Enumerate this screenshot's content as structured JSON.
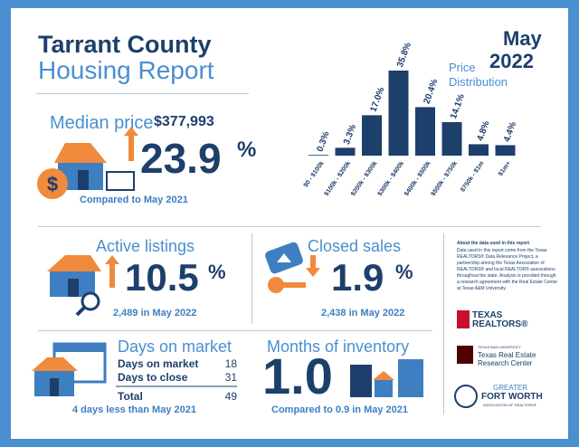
{
  "header": {
    "title": "Tarrant County",
    "subtitle": "Housing Report",
    "month": "May",
    "year": "2022"
  },
  "median": {
    "label": "Median price",
    "price": "$377,993",
    "change": "23.9",
    "unit": "%",
    "note": "Compared to May 2021"
  },
  "chart_data": {
    "type": "bar",
    "title": "Price Distribution",
    "categories": [
      "$0 - $100k",
      "$100k - $200k",
      "$200k - $300k",
      "$300k - $400k",
      "$400k - $500k",
      "$500k - $750k",
      "$750k - $1m",
      "$1m+"
    ],
    "values": [
      0.3,
      3.3,
      17.0,
      35.8,
      20.4,
      14.1,
      4.8,
      4.4
    ],
    "value_labels": [
      "0.3%",
      "3.3%",
      "17.0%",
      "35.8%",
      "20.4%",
      "14.1%",
      "4.8%",
      "4.4%"
    ],
    "color": "#1d3f6b"
  },
  "active": {
    "title": "Active listings",
    "change": "10.5",
    "unit": "%",
    "note": "2,489 in May 2022"
  },
  "closed": {
    "title": "Closed sales",
    "change": "1.9",
    "unit": "%",
    "note": "2,438 in May 2022"
  },
  "days": {
    "title": "Days on market",
    "rows": [
      [
        "Days on market",
        "18"
      ],
      [
        "Days to close",
        "31"
      ]
    ],
    "total": [
      "Total",
      "49"
    ],
    "note": "4 days less than May 2021"
  },
  "months": {
    "title": "Months of inventory",
    "value": "1.0",
    "note": "Compared to 0.9 in May 2021"
  },
  "about": {
    "title": "About the data used in this report",
    "body": "Data used in this report come from the Texas REALTORS® Data Relevance Project, a partnership among the Texas Association of REALTORS® and local REALTOR® associations throughout the state. Analysis is provided through a research agreement with the Real Estate Center at Texas A&M University."
  },
  "logos": {
    "texas_realtors": [
      "TEXAS",
      "REALTORS®"
    ],
    "tamu": [
      "TEXAS A&M UNIVERSITY",
      "Texas Real Estate",
      "Research Center"
    ],
    "gfw": [
      "GREATER",
      "FORT WORTH",
      "ASSOCIATION OF REALTORS®"
    ]
  }
}
